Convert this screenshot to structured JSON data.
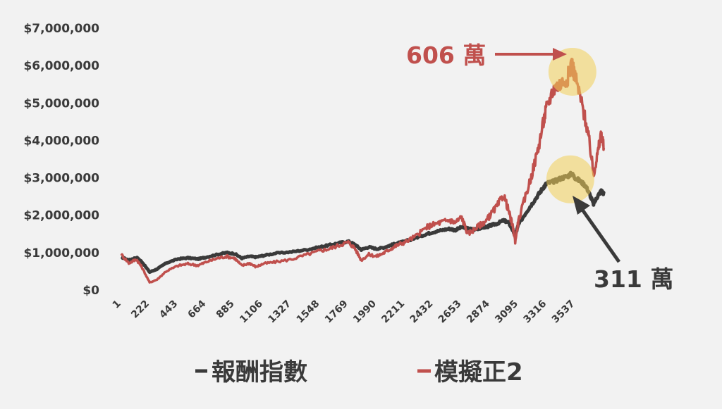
{
  "chart_data": {
    "type": "line",
    "y_tick_labels": [
      "$0",
      "$1,000,000",
      "$2,000,000",
      "$3,000,000",
      "$4,000,000",
      "$5,000,000",
      "$6,000,000",
      "$7,000,000"
    ],
    "y_tick_values": [
      0,
      1000000,
      2000000,
      3000000,
      4000000,
      5000000,
      6000000,
      7000000
    ],
    "ylim": [
      0,
      7000000
    ],
    "x_tick_labels": [
      "1",
      "222",
      "443",
      "664",
      "885",
      "1106",
      "1327",
      "1548",
      "1769",
      "1990",
      "2211",
      "2432",
      "2653",
      "2874",
      "3095",
      "3316",
      "3537"
    ],
    "x_tick_values": [
      1,
      222,
      443,
      664,
      885,
      1106,
      1327,
      1548,
      1769,
      1990,
      2211,
      2432,
      2653,
      2874,
      3095,
      3316,
      3537
    ],
    "xlim": [
      1,
      3780
    ],
    "grid": false,
    "legend_position": "bottom",
    "series": [
      {
        "name": "報酬指數",
        "color": "#3a3a3a",
        "points": [
          [
            1,
            880000
          ],
          [
            60,
            800000
          ],
          [
            120,
            870000
          ],
          [
            160,
            760000
          ],
          [
            222,
            480000
          ],
          [
            280,
            560000
          ],
          [
            350,
            720000
          ],
          [
            443,
            830000
          ],
          [
            520,
            860000
          ],
          [
            600,
            830000
          ],
          [
            664,
            880000
          ],
          [
            750,
            950000
          ],
          [
            820,
            1000000
          ],
          [
            885,
            970000
          ],
          [
            940,
            850000
          ],
          [
            1000,
            900000
          ],
          [
            1050,
            880000
          ],
          [
            1106,
            920000
          ],
          [
            1200,
            980000
          ],
          [
            1327,
            1020000
          ],
          [
            1450,
            1080000
          ],
          [
            1548,
            1150000
          ],
          [
            1620,
            1200000
          ],
          [
            1700,
            1260000
          ],
          [
            1769,
            1300000
          ],
          [
            1820,
            1220000
          ],
          [
            1870,
            1080000
          ],
          [
            1930,
            1150000
          ],
          [
            1990,
            1100000
          ],
          [
            2050,
            1140000
          ],
          [
            2100,
            1200000
          ],
          [
            2150,
            1250000
          ],
          [
            2211,
            1300000
          ],
          [
            2300,
            1400000
          ],
          [
            2380,
            1500000
          ],
          [
            2432,
            1550000
          ],
          [
            2500,
            1600000
          ],
          [
            2560,
            1640000
          ],
          [
            2600,
            1600000
          ],
          [
            2653,
            1680000
          ],
          [
            2700,
            1640000
          ],
          [
            2750,
            1620000
          ],
          [
            2800,
            1660000
          ],
          [
            2850,
            1690000
          ],
          [
            2874,
            1720000
          ],
          [
            2930,
            1780000
          ],
          [
            2980,
            1860000
          ],
          [
            3020,
            1800000
          ],
          [
            3050,
            1600000
          ],
          [
            3070,
            1450000
          ],
          [
            3095,
            1750000
          ],
          [
            3150,
            2050000
          ],
          [
            3200,
            2300000
          ],
          [
            3250,
            2550000
          ],
          [
            3290,
            2750000
          ],
          [
            3316,
            2850000
          ],
          [
            3370,
            2900000
          ],
          [
            3420,
            2980000
          ],
          [
            3480,
            3050000
          ],
          [
            3510,
            3110000
          ],
          [
            3537,
            3000000
          ],
          [
            3580,
            2900000
          ],
          [
            3620,
            2780000
          ],
          [
            3650,
            2560000
          ],
          [
            3680,
            2300000
          ],
          [
            3710,
            2500000
          ],
          [
            3740,
            2650000
          ],
          [
            3760,
            2580000
          ]
        ]
      },
      {
        "name": "模擬正2",
        "color": "#c0504d",
        "points": [
          [
            1,
            950000
          ],
          [
            60,
            720000
          ],
          [
            120,
            820000
          ],
          [
            160,
            620000
          ],
          [
            222,
            200000
          ],
          [
            280,
            280000
          ],
          [
            350,
            500000
          ],
          [
            443,
            650000
          ],
          [
            520,
            700000
          ],
          [
            600,
            660000
          ],
          [
            664,
            750000
          ],
          [
            750,
            850000
          ],
          [
            820,
            900000
          ],
          [
            885,
            850000
          ],
          [
            940,
            650000
          ],
          [
            1000,
            720000
          ],
          [
            1050,
            620000
          ],
          [
            1106,
            700000
          ],
          [
            1200,
            750000
          ],
          [
            1327,
            820000
          ],
          [
            1450,
            950000
          ],
          [
            1548,
            1050000
          ],
          [
            1620,
            1100000
          ],
          [
            1700,
            1200000
          ],
          [
            1769,
            1280000
          ],
          [
            1820,
            1120000
          ],
          [
            1870,
            800000
          ],
          [
            1930,
            950000
          ],
          [
            1990,
            900000
          ],
          [
            2050,
            1000000
          ],
          [
            2100,
            1100000
          ],
          [
            2150,
            1200000
          ],
          [
            2211,
            1280000
          ],
          [
            2300,
            1450000
          ],
          [
            2380,
            1680000
          ],
          [
            2432,
            1750000
          ],
          [
            2500,
            1820000
          ],
          [
            2560,
            1870000
          ],
          [
            2600,
            1800000
          ],
          [
            2653,
            1950000
          ],
          [
            2700,
            1500000
          ],
          [
            2750,
            1620000
          ],
          [
            2800,
            1750000
          ],
          [
            2850,
            1870000
          ],
          [
            2874,
            2000000
          ],
          [
            2930,
            2250000
          ],
          [
            2980,
            2550000
          ],
          [
            3020,
            2100000
          ],
          [
            3050,
            1700000
          ],
          [
            3070,
            1300000
          ],
          [
            3095,
            1850000
          ],
          [
            3150,
            2500000
          ],
          [
            3200,
            3100000
          ],
          [
            3250,
            3800000
          ],
          [
            3290,
            4500000
          ],
          [
            3316,
            4900000
          ],
          [
            3370,
            5400000
          ],
          [
            3420,
            5500000
          ],
          [
            3480,
            5700000
          ],
          [
            3510,
            6060000
          ],
          [
            3537,
            5700000
          ],
          [
            3580,
            5100000
          ],
          [
            3620,
            4500000
          ],
          [
            3650,
            3900000
          ],
          [
            3680,
            3100000
          ],
          [
            3710,
            3600000
          ],
          [
            3740,
            4200000
          ],
          [
            3760,
            3800000
          ]
        ]
      }
    ],
    "annotations": [
      {
        "label": "606 萬",
        "series": 1,
        "x": 3510,
        "y": 6060000,
        "color": "#c0504d"
      },
      {
        "label": "311 萬",
        "series": 0,
        "x": 3510,
        "y": 3110000,
        "color": "#3a3a3a"
      }
    ]
  }
}
